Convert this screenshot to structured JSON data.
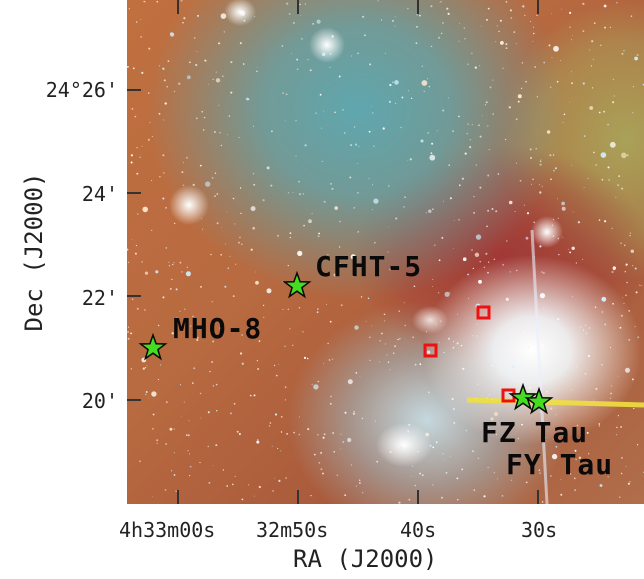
{
  "y_axis": {
    "title": "Dec (J2000)",
    "ticks": [
      "24°26'",
      "24'",
      "22'",
      "20'"
    ]
  },
  "x_axis": {
    "title": "RA (J2000)",
    "ticks": [
      "4h33m00s",
      "32m50s",
      "40s",
      "30s"
    ]
  },
  "sources": [
    {
      "label": "MHO-8",
      "marker": "green-star"
    },
    {
      "label": "CFHT-5",
      "marker": "green-star"
    },
    {
      "label": "FZ Tau",
      "marker": "green-star"
    },
    {
      "label": "FY Tau",
      "marker": "green-star"
    }
  ],
  "colors": {
    "star_marker": "#44dd22",
    "box_marker": "#ee1111"
  }
}
